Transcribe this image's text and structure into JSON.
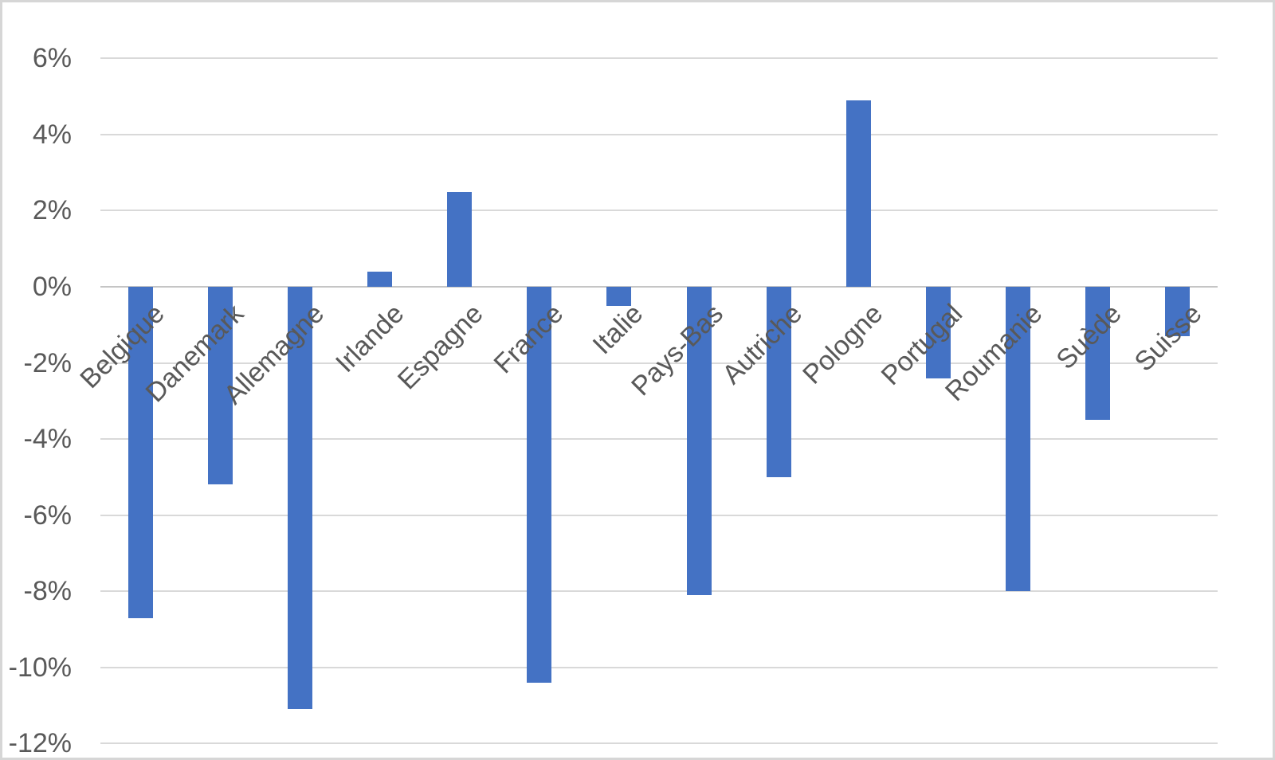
{
  "chart_data": {
    "type": "bar",
    "title": "",
    "categories": [
      "Belgique",
      "Danemark",
      "Allemagne",
      "Irlande",
      "Espagne",
      "France",
      "Italie",
      "Pays-Bas",
      "Autriche",
      "Pologne",
      "Portugal",
      "Roumanie",
      "Suède",
      "Suisse"
    ],
    "values": [
      -8.7,
      -5.2,
      -11.1,
      0.4,
      2.5,
      -10.4,
      -0.5,
      -8.1,
      -5.0,
      4.9,
      -2.4,
      -8.0,
      -3.5,
      -1.3
    ],
    "unit": "%",
    "xlabel": "",
    "ylabel": "",
    "ylim": [
      -12,
      6
    ],
    "y_ticks": [
      {
        "value": 6,
        "label": "6%"
      },
      {
        "value": 4,
        "label": "4%"
      },
      {
        "value": 2,
        "label": "2%"
      },
      {
        "value": 0,
        "label": "0%"
      },
      {
        "value": -2,
        "label": "-2%"
      },
      {
        "value": -4,
        "label": "-4%"
      },
      {
        "value": -6,
        "label": "-6%"
      },
      {
        "value": -8,
        "label": "-8%"
      },
      {
        "value": -10,
        "label": "-10%"
      },
      {
        "value": -12,
        "label": "-12%"
      }
    ],
    "grid": true,
    "legend_position": "none",
    "colors": {
      "bar": "#4472c4",
      "gridline": "#d9d9d9",
      "axis_line": "#c5c5c5",
      "labels": "#595959",
      "background": "#ffffff",
      "frame_border": "#d6d6d6"
    }
  }
}
